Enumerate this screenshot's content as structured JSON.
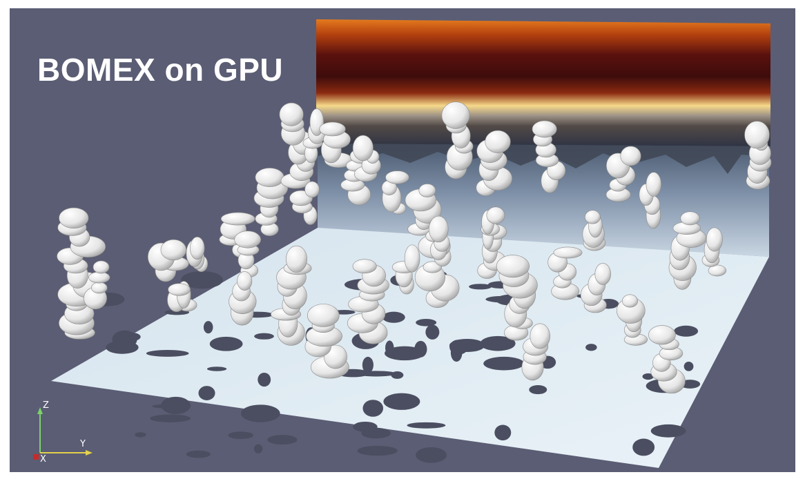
{
  "title": "BOMEX on GPU",
  "axes_widget": {
    "z_label": "Z",
    "y_label": "Y",
    "x_label": "X"
  },
  "colors": {
    "background": "#5b5d74",
    "ground": "#dde9f1",
    "cloud": "#f2f2f2",
    "cloud_shadow": "#4a4c5c",
    "heat_top": "#e07a1e",
    "heat_mid": "#4a0f0c",
    "heat_band": "#f3d27a"
  }
}
